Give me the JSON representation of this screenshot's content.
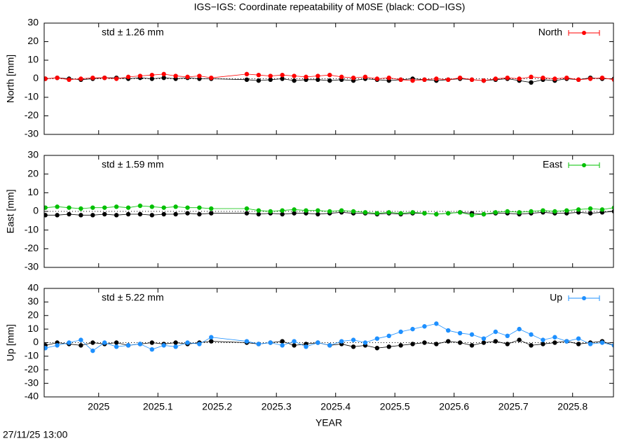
{
  "title": "IGS−IGS: Coordinate repeatability of M0SE (black: COD−IGS)",
  "timestamp": "27/11/25 13:00",
  "chart_data": [
    {
      "type": "line",
      "ylabel": "North [mm]",
      "annotation": "std ± 1.26 mm",
      "legend": "upper right",
      "xlim": [
        2024.908,
        2025.869
      ],
      "xticks": [
        2025,
        2025.1,
        2025.2,
        2025.3,
        2025.4,
        2025.5,
        2025.6,
        2025.7,
        2025.8
      ],
      "ylim": [
        -30,
        30
      ],
      "yticks": [
        -30,
        -20,
        -10,
        0,
        10,
        20,
        30
      ],
      "x": [
        2024.91,
        2024.93,
        2024.95,
        2024.97,
        2024.99,
        2025.01,
        2025.03,
        2025.05,
        2025.07,
        2025.09,
        2025.11,
        2025.13,
        2025.15,
        2025.17,
        2025.19,
        2025.25,
        2025.27,
        2025.29,
        2025.31,
        2025.33,
        2025.35,
        2025.37,
        2025.39,
        2025.41,
        2025.43,
        2025.45,
        2025.47,
        2025.49,
        2025.51,
        2025.53,
        2025.55,
        2025.57,
        2025.59,
        2025.61,
        2025.63,
        2025.65,
        2025.67,
        2025.69,
        2025.71,
        2025.73,
        2025.75,
        2025.77,
        2025.79,
        2025.81,
        2025.83,
        2025.85,
        2025.87
      ],
      "series": [
        {
          "color": "#000000",
          "values": [
            0,
            0.5,
            0,
            -0.5,
            0,
            0.5,
            0.5,
            0,
            0.5,
            0,
            0.5,
            0,
            0.5,
            0,
            0,
            -0.5,
            -1,
            -0.5,
            0,
            -1,
            -0.5,
            -0.5,
            -1,
            -0.5,
            -1,
            0,
            -0.5,
            -1,
            -0.5,
            0,
            -0.5,
            -1,
            -0.5,
            0,
            -0.5,
            -1,
            -0.5,
            0,
            -1,
            -2,
            -0.5,
            -1,
            0,
            -0.5,
            0.5,
            0,
            0
          ]
        },
        {
          "name": "North",
          "color": "#ff0000",
          "values": [
            0,
            0.5,
            -0.5,
            0,
            0.5,
            0.5,
            0,
            1,
            1.5,
            2,
            2.5,
            1.5,
            1,
            1.5,
            0.5,
            2.5,
            2,
            1.5,
            2,
            1.5,
            1,
            1.5,
            2,
            1,
            0.5,
            1,
            0,
            0.5,
            -0.5,
            -1,
            -0.5,
            0,
            -0.5,
            0.5,
            -0.5,
            -1,
            0,
            0.5,
            0,
            1,
            0.5,
            0,
            0.5,
            -0.5,
            0,
            0.5,
            -0.5
          ]
        }
      ]
    },
    {
      "type": "line",
      "ylabel": "East [mm]",
      "annotation": "std ± 1.59 mm",
      "legend": "upper right",
      "xlim": [
        2024.908,
        2025.869
      ],
      "xticks": [
        2025,
        2025.1,
        2025.2,
        2025.3,
        2025.4,
        2025.5,
        2025.6,
        2025.7,
        2025.8
      ],
      "ylim": [
        -30,
        30
      ],
      "yticks": [
        -30,
        -20,
        -10,
        0,
        10,
        20,
        30
      ],
      "x": [
        2024.91,
        2024.93,
        2024.95,
        2024.97,
        2024.99,
        2025.01,
        2025.03,
        2025.05,
        2025.07,
        2025.09,
        2025.11,
        2025.13,
        2025.15,
        2025.17,
        2025.19,
        2025.25,
        2025.27,
        2025.29,
        2025.31,
        2025.33,
        2025.35,
        2025.37,
        2025.39,
        2025.41,
        2025.43,
        2025.45,
        2025.47,
        2025.49,
        2025.51,
        2025.53,
        2025.55,
        2025.57,
        2025.59,
        2025.61,
        2025.63,
        2025.65,
        2025.67,
        2025.69,
        2025.71,
        2025.73,
        2025.75,
        2025.77,
        2025.79,
        2025.81,
        2025.83,
        2025.85,
        2025.87
      ],
      "series": [
        {
          "color": "#000000",
          "values": [
            -2,
            -2,
            -1.5,
            -2,
            -2,
            -1.5,
            -2,
            -1.5,
            -1.5,
            -2,
            -1.5,
            -1.5,
            -1,
            -1.5,
            -1,
            -1,
            -1.5,
            -1,
            -1.5,
            -1,
            -1,
            -1.5,
            -1,
            -0.5,
            -1,
            -1,
            -1.5,
            -1,
            -1.5,
            -1,
            -1,
            -1.5,
            -1,
            -0.5,
            -1,
            -1.5,
            -1,
            -1,
            -1.5,
            -1,
            -0.5,
            -1,
            -1,
            -0.5,
            -1,
            -0.5,
            0
          ]
        },
        {
          "name": "East",
          "color": "#00c000",
          "values": [
            2,
            2.5,
            2,
            1.5,
            2,
            2,
            2.5,
            2,
            3,
            2.5,
            2,
            2.5,
            2,
            2,
            1.5,
            1.5,
            0.5,
            0,
            0.5,
            1,
            0.5,
            0.5,
            0,
            0.5,
            0,
            -0.5,
            -1,
            -0.5,
            -1,
            -0.5,
            -1,
            -1.5,
            -1,
            -0.5,
            -2,
            -1.5,
            -0.5,
            0,
            -0.5,
            0,
            0.5,
            0,
            0.5,
            1,
            1.5,
            1,
            2
          ]
        }
      ]
    },
    {
      "type": "line",
      "ylabel": "Up [mm]",
      "annotation": "std ± 5.22 mm",
      "legend": "upper right",
      "xlabel": "YEAR",
      "xlim": [
        2024.908,
        2025.869
      ],
      "xticks": [
        2025,
        2025.1,
        2025.2,
        2025.3,
        2025.4,
        2025.5,
        2025.6,
        2025.7,
        2025.8
      ],
      "ylim": [
        -40,
        40
      ],
      "yticks": [
        -40,
        -30,
        -20,
        -10,
        0,
        10,
        20,
        30,
        40
      ],
      "x": [
        2024.91,
        2024.93,
        2024.95,
        2024.97,
        2024.99,
        2025.01,
        2025.03,
        2025.05,
        2025.07,
        2025.09,
        2025.11,
        2025.13,
        2025.15,
        2025.17,
        2025.19,
        2025.25,
        2025.27,
        2025.29,
        2025.31,
        2025.33,
        2025.35,
        2025.37,
        2025.39,
        2025.41,
        2025.43,
        2025.45,
        2025.47,
        2025.49,
        2025.51,
        2025.53,
        2025.55,
        2025.57,
        2025.59,
        2025.61,
        2025.63,
        2025.65,
        2025.67,
        2025.69,
        2025.71,
        2025.73,
        2025.75,
        2025.77,
        2025.79,
        2025.81,
        2025.83,
        2025.85,
        2025.87
      ],
      "series": [
        {
          "color": "#000000",
          "values": [
            -2,
            0,
            -1,
            -2,
            0,
            -1,
            0,
            -2,
            -1,
            0,
            -1,
            0,
            -1,
            0,
            1,
            0,
            -1,
            0,
            1,
            -2,
            -1,
            0,
            -2,
            -1,
            -3,
            -2,
            -4,
            -3,
            -2,
            -1,
            0,
            -1,
            1,
            0,
            -2,
            0,
            1,
            -1,
            2,
            -2,
            -1,
            0,
            1,
            -1,
            0,
            1,
            -2
          ]
        },
        {
          "name": "Up",
          "color": "#1e90ff",
          "values": [
            -4,
            -2,
            0,
            2,
            -6,
            0,
            -3,
            -2,
            -1,
            -5,
            -2,
            -3,
            0,
            -1,
            4,
            1,
            -1,
            0,
            -2,
            1,
            -3,
            0,
            -2,
            1,
            2,
            0,
            3,
            5,
            8,
            10,
            12,
            14,
            9,
            7,
            6,
            3,
            8,
            5,
            10,
            6,
            2,
            4,
            1,
            3,
            -1,
            0,
            -2
          ]
        }
      ]
    }
  ]
}
